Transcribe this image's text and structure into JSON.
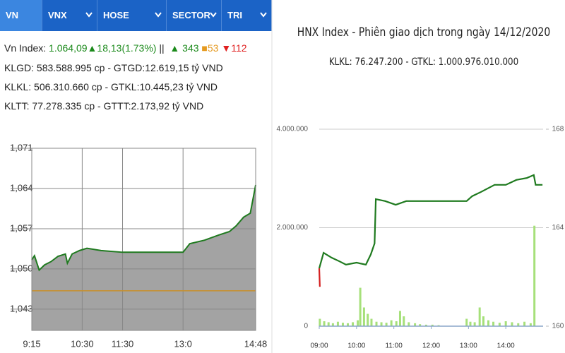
{
  "tabs": [
    "VN INDEX",
    "VNX",
    "HOSE",
    "SECTOR",
    "TRI"
  ],
  "info": {
    "index_label": "Vn Index:",
    "index_value": "1.064,09",
    "index_change": "▲18,13(1.73%)",
    "separator": "||",
    "advances": "▲ 343",
    "unchanged": "■53",
    "declines": "▼112",
    "line2": "KLGD: 583.588.995 cp - GTGD:12.619,15 tỷ VND",
    "line3": "KLKL: 506.310.660 cp - GTKL:10.445,23 tỷ VND",
    "line4": "KLTT: 77.278.335 cp - GTTT:2.173,92 tỷ VND"
  },
  "chart_data": [
    {
      "type": "area",
      "x": [
        555,
        559,
        566,
        574,
        584,
        594,
        605,
        608,
        615,
        626,
        637,
        658,
        690,
        780,
        790,
        812,
        833,
        849,
        859,
        870,
        880,
        888
      ],
      "values": [
        1051.6,
        1052.3,
        1049.8,
        1050.7,
        1051.3,
        1052.2,
        1052.6,
        1051.0,
        1052.6,
        1053.2,
        1053.6,
        1053.2,
        1052.9,
        1052.9,
        1054.4,
        1055.0,
        1055.9,
        1056.5,
        1057.5,
        1059.0,
        1059.7,
        1064.6
      ],
      "color": "#1f7a1f",
      "fill": "#a3a3a3",
      "reference": 1046.2,
      "reference_color": "#c8902a",
      "xlim": [
        555,
        888
      ],
      "xticks": [
        {
          "value": 555,
          "label": "9:15"
        },
        {
          "value": 630,
          "label": "10:30"
        },
        {
          "value": 690,
          "label": "11:30"
        },
        {
          "value": 780,
          "label": "13:0"
        },
        {
          "value": 888,
          "label": "14:48"
        }
      ],
      "ylim": [
        1039.3,
        1071
      ],
      "yticks": [
        {
          "value": 1043,
          "label": "1,043"
        },
        {
          "value": 1050,
          "label": "1,050"
        },
        {
          "value": 1057,
          "label": "1,057"
        },
        {
          "value": 1064,
          "label": "1,064"
        },
        {
          "value": 1071,
          "label": "1,071"
        }
      ],
      "grid": true
    },
    {
      "type": "bar-line",
      "title": "HNX Index - Phiên giao dịch trong ngày 14/12/2020",
      "subtitle": "KLKL: 76.247.200 - GTKL: 1.000.976.010.000",
      "xlim": [
        540,
        900
      ],
      "xticks": [
        {
          "value": 540,
          "label": "09:00"
        },
        {
          "value": 600,
          "label": "10:00"
        },
        {
          "value": 660,
          "label": "11:00"
        },
        {
          "value": 720,
          "label": "12:00"
        },
        {
          "value": 780,
          "label": "13:00"
        },
        {
          "value": 840,
          "label": "14:00"
        }
      ],
      "ylim": [
        0,
        4000000
      ],
      "yticks": [
        0,
        {
          "value": 2000000,
          "label": "2.000.000"
        },
        {
          "value": 4000000,
          "label": "4.000.000"
        }
      ],
      "y2lim": [
        160,
        168
      ],
      "y2ticks": [
        160,
        164,
        168
      ],
      "grid": true,
      "series": [
        {
          "type": "bar",
          "color": "#a6e07a",
          "x": [
            541,
            548,
            555,
            562,
            570,
            578,
            586,
            594,
            602,
            606,
            612,
            618,
            624,
            632,
            640,
            648,
            656,
            664,
            670,
            676,
            684,
            694,
            702,
            712,
            722,
            732,
            777,
            783,
            790,
            798,
            804,
            812,
            820,
            830,
            840,
            850,
            860,
            870,
            880,
            886
          ],
          "values": [
            150000,
            100000,
            80000,
            60000,
            90000,
            70000,
            60000,
            80000,
            120000,
            780000,
            380000,
            250000,
            150000,
            90000,
            80000,
            70000,
            120000,
            100000,
            310000,
            200000,
            80000,
            60000,
            40000,
            30000,
            30000,
            20000,
            150000,
            90000,
            80000,
            380000,
            200000,
            120000,
            90000,
            70000,
            100000,
            80000,
            60000,
            90000,
            60000,
            2040000
          ]
        },
        {
          "type": "line",
          "axis": "y2",
          "color": "#1f7a1f",
          "x": [
            540,
            547,
            560,
            572,
            583,
            600,
            615,
            623,
            629,
            631,
            646,
            663,
            680,
            697,
            777,
            786,
            800,
            822,
            840,
            857,
            874,
            885,
            888,
            899
          ],
          "values": [
            162.35,
            162.98,
            162.78,
            162.64,
            162.5,
            162.58,
            162.5,
            162.92,
            163.36,
            165.16,
            165.08,
            164.93,
            165.08,
            165.08,
            165.08,
            165.28,
            165.45,
            165.74,
            165.74,
            165.94,
            166.02,
            166.14,
            165.74,
            165.74
          ]
        },
        {
          "type": "line",
          "axis": "y2",
          "color": "#d42020",
          "x": [
            540,
            541
          ],
          "values": [
            162.35,
            161.6
          ]
        }
      ]
    }
  ]
}
